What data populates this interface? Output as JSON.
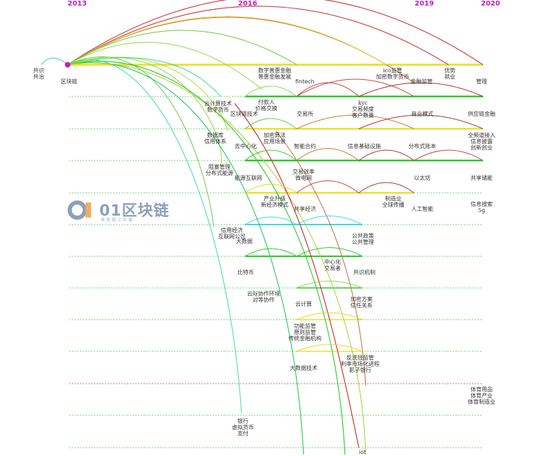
{
  "years": [
    "2013",
    "2016",
    "2019",
    "2020"
  ],
  "watermark": {
    "text": "01区块链",
    "subtitle": "发现链上价值"
  },
  "labels": [
    {
      "id": "gongshi",
      "text": "共识\n共治"
    },
    {
      "id": "qukuailian",
      "text": "区块链"
    },
    {
      "id": "shuzipuhui",
      "text": "数字普惠金融\n普惠金融发展"
    },
    {
      "id": "fintech",
      "text": "fintech"
    },
    {
      "id": "icojianguan",
      "text": "ico监管\n加密数字货币"
    },
    {
      "id": "jinrongjianguan",
      "text": "金融监管"
    },
    {
      "id": "youshi",
      "text": "优势\n就业"
    },
    {
      "id": "guanli",
      "text": "管理"
    },
    {
      "id": "yunjisuanjishu",
      "text": "云计算技术\n数字货币"
    },
    {
      "id": "fukuanren",
      "text": "付款人\n价格交换"
    },
    {
      "id": "qukuailianjishu",
      "text": "区块链技术"
    },
    {
      "id": "jiaoyisuo",
      "text": "交易所"
    },
    {
      "id": "kyc",
      "text": "kyc\n交易频度\n客户数量"
    },
    {
      "id": "shangyemoshi",
      "text": "商业模式"
    },
    {
      "id": "gongyinglian",
      "text": "供应链金融"
    },
    {
      "id": "shujuku",
      "text": "数据库\n信用体系"
    },
    {
      "id": "jiamisuanfa",
      "text": "加密算法\n应用场景"
    },
    {
      "id": "quzhongxinhua",
      "text": "去中心化"
    },
    {
      "id": "zhinengheyue",
      "text": "智能合约"
    },
    {
      "id": "xinxijichu",
      "text": "信息基础设施"
    },
    {
      "id": "fenbushizhangben",
      "text": "分布式账本"
    },
    {
      "id": "quanpindao",
      "text": "全频道接入\n信息披露\n创新创业"
    },
    {
      "id": "zunicaozhi",
      "text": "阻塞管理\n分布式能源"
    },
    {
      "id": "nengyuanhulianwang",
      "text": "能源互联网"
    },
    {
      "id": "jiaoyixiaolv",
      "text": "交易效率\n微电网"
    },
    {
      "id": "yitaifang",
      "text": "以太坊"
    },
    {
      "id": "gongxiangchuneng",
      "text": "共享储能"
    },
    {
      "id": "chanyeshengji",
      "text": "产业升级\n新经济模式"
    },
    {
      "id": "zhizaoye",
      "text": "制造业\n全球传播"
    },
    {
      "id": "gongxiangjingji",
      "text": "共享经济"
    },
    {
      "id": "rengongzhineng",
      "text": "人工智能"
    },
    {
      "id": "xinxisousuo",
      "text": "信息搜索\n5g"
    },
    {
      "id": "xinyongjingji",
      "text": "信用经济\n互联网公司"
    },
    {
      "id": "dashuju",
      "text": "大数据"
    },
    {
      "id": "gonggongzhengce",
      "text": "公共政策\n公共管理"
    },
    {
      "id": "zhongxinhua",
      "text": "中心化\n交易者"
    },
    {
      "id": "bitebi",
      "text": "比特币"
    },
    {
      "id": "gongshijizhi",
      "text": "共识机制"
    },
    {
      "id": "yunjixiezuo",
      "text": "云际协作环境\n对等协作"
    },
    {
      "id": "yunjisuan",
      "text": "云计算"
    },
    {
      "id": "jiamifangan",
      "text": "加密方案\n信任关系"
    },
    {
      "id": "gongnengjianguan",
      "text": "功能监管\n原则监管\n传统金融机构"
    },
    {
      "id": "dashujujishu",
      "text": "大数据技术"
    },
    {
      "id": "fanxiqian",
      "text": "反洗钱监管\n利率市场化进程\n影子银行"
    },
    {
      "id": "tiyuyongpin",
      "text": "体育用品\n体育产业\n体育制造业"
    },
    {
      "id": "yinhang",
      "text": "银行\n虚拟货币\n支付"
    },
    {
      "id": "iot",
      "text": "iot"
    }
  ]
}
